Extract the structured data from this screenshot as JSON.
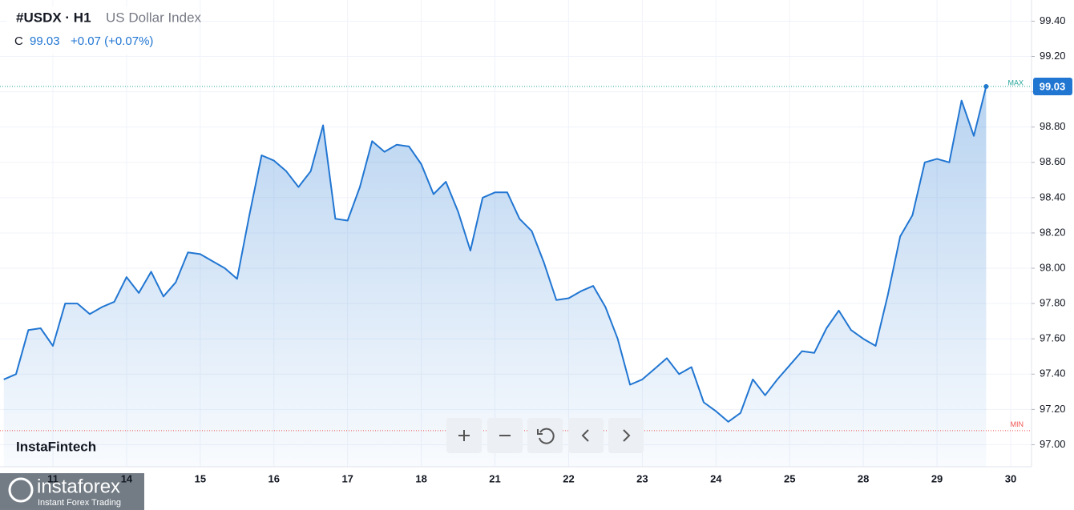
{
  "header": {
    "symbol": "#USDX · H1",
    "name": "US Dollar Index",
    "close_label": "C",
    "close": "99.03",
    "change": "+0.07 (+0.07%)"
  },
  "watermark": "InstaFintech",
  "logo": {
    "brand": "instaforex",
    "tagline": "Instant Forex Trading"
  },
  "chart_data": {
    "type": "area",
    "categories": [
      null,
      null,
      null,
      null,
      "11",
      null,
      null,
      null,
      null,
      null,
      "14",
      null,
      null,
      null,
      null,
      null,
      "15",
      null,
      null,
      null,
      null,
      null,
      "16",
      null,
      null,
      null,
      null,
      null,
      "17",
      null,
      null,
      null,
      null,
      null,
      "18",
      null,
      null,
      null,
      null,
      null,
      "21",
      null,
      null,
      null,
      null,
      null,
      "22",
      null,
      null,
      null,
      null,
      null,
      "23",
      null,
      null,
      null,
      null,
      null,
      "24",
      null,
      null,
      null,
      null,
      null,
      "25",
      null,
      null,
      null,
      null,
      null,
      "28",
      null,
      null,
      null,
      null,
      null,
      "29",
      null,
      null,
      null,
      null,
      null,
      "30"
    ],
    "values": [
      97.37,
      97.4,
      97.65,
      97.66,
      97.56,
      97.8,
      97.8,
      97.74,
      97.78,
      97.81,
      97.95,
      97.86,
      97.98,
      97.84,
      97.92,
      98.09,
      98.08,
      98.04,
      98.0,
      97.94,
      98.3,
      98.64,
      98.61,
      98.55,
      98.46,
      98.55,
      98.81,
      98.28,
      98.27,
      98.46,
      98.72,
      98.66,
      98.7,
      98.69,
      98.59,
      98.42,
      98.49,
      98.32,
      98.1,
      98.4,
      98.43,
      98.43,
      98.28,
      98.21,
      98.03,
      97.82,
      97.83,
      97.87,
      97.9,
      97.78,
      97.6,
      97.34,
      97.37,
      97.43,
      97.49,
      97.4,
      97.44,
      97.24,
      97.19,
      97.13,
      97.18,
      97.37,
      97.28,
      97.37,
      97.45,
      97.53,
      97.52,
      97.66,
      97.76,
      97.65,
      97.6,
      97.56,
      97.85,
      98.18,
      98.3,
      98.6,
      98.62,
      98.6,
      98.95,
      98.75,
      99.03,
      null,
      null
    ],
    "color": "#2176d2",
    "ylim": [
      96.875,
      99.52
    ],
    "yticks": [
      {
        "value": 97.0,
        "label": "97.00"
      },
      {
        "value": 97.2,
        "label": "97.20"
      },
      {
        "value": 97.4,
        "label": "97.40"
      },
      {
        "value": 97.6,
        "label": "97.60"
      },
      {
        "value": 97.8,
        "label": "97.80"
      },
      {
        "value": 98.0,
        "label": "98.00"
      },
      {
        "value": 98.2,
        "label": "98.20"
      },
      {
        "value": 98.4,
        "label": "98.40"
      },
      {
        "value": 98.6,
        "label": "98.60"
      },
      {
        "value": 98.8,
        "label": "98.80"
      },
      {
        "value": 99.0,
        "label": "99.00"
      },
      {
        "value": 99.2,
        "label": "99.20"
      },
      {
        "value": 99.4,
        "label": "99.40"
      }
    ],
    "grid": true,
    "last_price": 99.03,
    "last_price_label": "99.03",
    "max_line": 99.03,
    "max_label": "MAX",
    "max_color": "#26a69a",
    "min_line": 97.08,
    "min_label": "MIN",
    "min_color": "#ef5350"
  }
}
